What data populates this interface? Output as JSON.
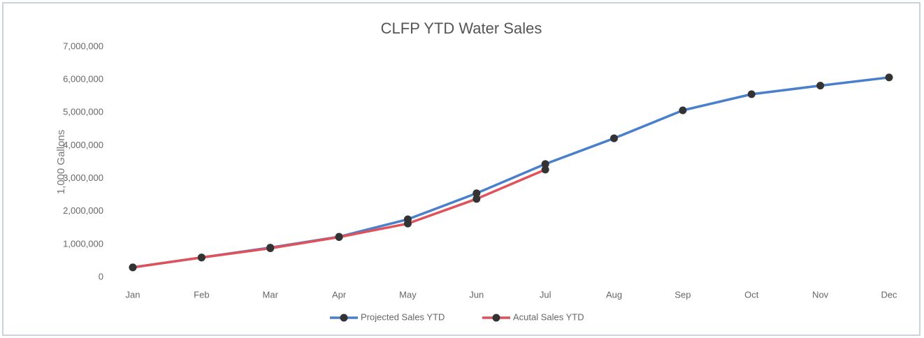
{
  "chart_data": {
    "type": "line",
    "title": "CLFP YTD Water Sales",
    "y_label": "1,000 Gallons",
    "categories": [
      "Jan",
      "Feb",
      "Mar",
      "Apr",
      "May",
      "Jun",
      "Jul",
      "Aug",
      "Sep",
      "Oct",
      "Nov",
      "Dec"
    ],
    "series": [
      {
        "name": "Projected Sales YTD",
        "color": "#4a7fcb",
        "values": [
          300000,
          600000,
          900000,
          1230000,
          1760000,
          2550000,
          3440000,
          4220000,
          5070000,
          5560000,
          5820000,
          6070000
        ]
      },
      {
        "name": "Acutal Sales YTD",
        "color": "#e0515a",
        "values": [
          300000,
          600000,
          880000,
          1220000,
          1630000,
          2380000,
          3270000,
          null,
          null,
          null,
          null,
          null
        ]
      }
    ],
    "marker_color": "#333333",
    "ylim": [
      0,
      7000000
    ],
    "yticks": [
      0,
      {
        "value": 1000000,
        "label": "1,000,000"
      },
      {
        "value": 2000000,
        "label": "2,000,000"
      },
      {
        "value": 3000000,
        "label": "3,000,000"
      },
      {
        "value": 4000000,
        "label": "4,000,000"
      },
      {
        "value": 5000000,
        "label": "5,000,000"
      },
      {
        "value": 6000000,
        "label": "6,000,000"
      },
      {
        "value": 7000000,
        "label": "7,000,000"
      }
    ],
    "grid": false,
    "legend": "bottom"
  }
}
